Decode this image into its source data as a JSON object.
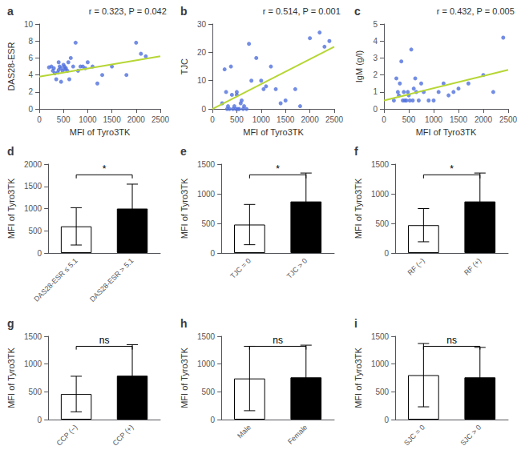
{
  "chart_data": [
    {
      "type": "scatter",
      "title": "a",
      "annotation": "r = 0.323, P = 0.042",
      "xlabel": "MFI of Tyro3TK",
      "ylabel": "DAS28-ESR",
      "xlim": [
        0,
        2500
      ],
      "ylim": [
        0,
        10
      ],
      "xticks": [
        0,
        500,
        1000,
        1500,
        2000,
        2500
      ],
      "yticks": [
        0,
        2,
        4,
        6,
        8,
        10
      ],
      "grid": false,
      "series": [
        {
          "type": "scatter",
          "x": [
            200,
            250,
            280,
            300,
            320,
            350,
            380,
            400,
            400,
            420,
            450,
            450,
            480,
            500,
            520,
            530,
            550,
            580,
            600,
            620,
            650,
            700,
            750,
            800,
            850,
            900,
            950,
            1000,
            1100,
            1200,
            1300,
            1500,
            1800,
            2000,
            2100,
            2200
          ],
          "values": [
            4.9,
            5.0,
            4.5,
            4.8,
            4.2,
            3.5,
            4.3,
            4.6,
            5.5,
            5.0,
            4.8,
            3.2,
            4.5,
            5.2,
            5.0,
            4.7,
            4.8,
            4.5,
            5.5,
            3.5,
            6.0,
            5.0,
            7.8,
            4.5,
            5.0,
            5.0,
            4.8,
            5.5,
            5.0,
            3.0,
            4.0,
            5.0,
            4.0,
            7.8,
            6.5,
            6.2
          ]
        },
        {
          "type": "line",
          "x": [
            0,
            2500
          ],
          "values": [
            3.8,
            6.2
          ]
        }
      ]
    },
    {
      "type": "scatter",
      "title": "b",
      "annotation": "r = 0.514, P = 0.001",
      "xlabel": "MFI of Tyro3TK",
      "ylabel": "TJC",
      "xlim": [
        0,
        2500
      ],
      "ylim": [
        0,
        30
      ],
      "xticks": [
        0,
        500,
        1000,
        1500,
        2000,
        2500
      ],
      "yticks": [
        0,
        10,
        20,
        30
      ],
      "grid": false,
      "series": [
        {
          "type": "scatter",
          "x": [
            200,
            250,
            280,
            300,
            320,
            350,
            380,
            400,
            420,
            450,
            480,
            500,
            500,
            520,
            550,
            580,
            600,
            630,
            650,
            700,
            750,
            800,
            900,
            1000,
            1050,
            1100,
            1200,
            1300,
            1400,
            1500,
            1700,
            1800,
            2000,
            2200,
            2300,
            2400
          ],
          "values": [
            2,
            14,
            6,
            0,
            1,
            0,
            15,
            5,
            0,
            1,
            0,
            6,
            5,
            0,
            0,
            2,
            3,
            0,
            1,
            0,
            23,
            10,
            18,
            10,
            7,
            8,
            15,
            7,
            2,
            3,
            7,
            1,
            25,
            27,
            22,
            24
          ]
        },
        {
          "type": "line",
          "x": [
            0,
            2500
          ],
          "values": [
            0,
            22
          ]
        }
      ]
    },
    {
      "type": "scatter",
      "title": "c",
      "annotation": "r = 0.432, P = 0.005",
      "xlabel": "MFI of Tyro3TK",
      "ylabel": "IgM (g/l)",
      "xlim": [
        0,
        2500
      ],
      "ylim": [
        0,
        5
      ],
      "xticks": [
        0,
        500,
        1000,
        1500,
        2000,
        2500
      ],
      "yticks": [
        0,
        1,
        2,
        3,
        4,
        5
      ],
      "grid": false,
      "series": [
        {
          "type": "scatter",
          "x": [
            200,
            250,
            280,
            300,
            320,
            350,
            380,
            400,
            420,
            450,
            480,
            500,
            520,
            550,
            580,
            600,
            630,
            650,
            700,
            750,
            800,
            900,
            1000,
            1100,
            1200,
            1300,
            1400,
            1500,
            1700,
            2000,
            2200,
            2400
          ],
          "values": [
            0.5,
            1.8,
            1.0,
            0.8,
            1.5,
            2.8,
            0.5,
            1.0,
            0.5,
            0.5,
            1.0,
            0.8,
            0.5,
            3.5,
            0.5,
            1.2,
            1.8,
            1.0,
            0.5,
            1.5,
            1.0,
            0.5,
            0.5,
            1.0,
            1.5,
            0.8,
            1.0,
            1.2,
            1.5,
            2.0,
            1.0,
            4.2
          ]
        },
        {
          "type": "line",
          "x": [
            0,
            2500
          ],
          "values": [
            0.5,
            2.3
          ]
        }
      ]
    },
    {
      "type": "bar",
      "title": "d",
      "annotation": "*",
      "categories": [
        "DAS28-ESR ≤ 5.1",
        "DAS28-ESR > 5.1"
      ],
      "values": [
        600,
        1000
      ],
      "errors": [
        420,
        550
      ],
      "colors": [
        "white",
        "black"
      ],
      "ylabel": "MFI of Tyro3TK",
      "ylim": [
        0,
        2000
      ],
      "yticks": [
        0,
        500,
        1000,
        1500,
        2000
      ],
      "grid": false
    },
    {
      "type": "bar",
      "title": "e",
      "annotation": "*",
      "categories": [
        "TJC = 0",
        "TJC > 0"
      ],
      "values": [
        480,
        870
      ],
      "errors": [
        340,
        480
      ],
      "colors": [
        "white",
        "black"
      ],
      "ylabel": "MFI of Tyro3TK",
      "ylim": [
        0,
        1500
      ],
      "yticks": [
        0,
        500,
        1000,
        1500
      ],
      "grid": false
    },
    {
      "type": "bar",
      "title": "f",
      "annotation": "*",
      "categories": [
        "RF (−)",
        "RF (+)"
      ],
      "values": [
        470,
        870
      ],
      "errors": [
        280,
        480
      ],
      "colors": [
        "white",
        "black"
      ],
      "ylabel": "MFI of Tyro3TK",
      "ylim": [
        0,
        1500
      ],
      "yticks": [
        0,
        500,
        1000,
        1500
      ],
      "grid": false
    },
    {
      "type": "bar",
      "title": "g",
      "annotation": "ns",
      "categories": [
        "CCP (−)",
        "CCP (+)"
      ],
      "values": [
        460,
        790
      ],
      "errors": [
        320,
        560
      ],
      "colors": [
        "white",
        "black"
      ],
      "ylabel": "MFI of Tyro3TK",
      "ylim": [
        0,
        1500
      ],
      "yticks": [
        0,
        500,
        1000,
        1500
      ],
      "grid": false
    },
    {
      "type": "bar",
      "title": "h",
      "annotation": "ns",
      "categories": [
        "Male",
        "Female"
      ],
      "values": [
        740,
        760
      ],
      "errors": [
        580,
        580
      ],
      "colors": [
        "white",
        "black"
      ],
      "ylabel": "MFI of Tyro3TK",
      "ylim": [
        0,
        1500
      ],
      "yticks": [
        0,
        500,
        1000,
        1500
      ],
      "grid": false
    },
    {
      "type": "bar",
      "title": "i",
      "annotation": "ns",
      "categories": [
        "SJC = 0",
        "SJC > 0"
      ],
      "values": [
        800,
        760
      ],
      "errors": [
        570,
        540
      ],
      "colors": [
        "white",
        "black"
      ],
      "ylabel": "MFI of Tyro3TK",
      "ylim": [
        0,
        1500
      ],
      "yticks": [
        0,
        500,
        1000,
        1500
      ],
      "grid": false
    }
  ]
}
